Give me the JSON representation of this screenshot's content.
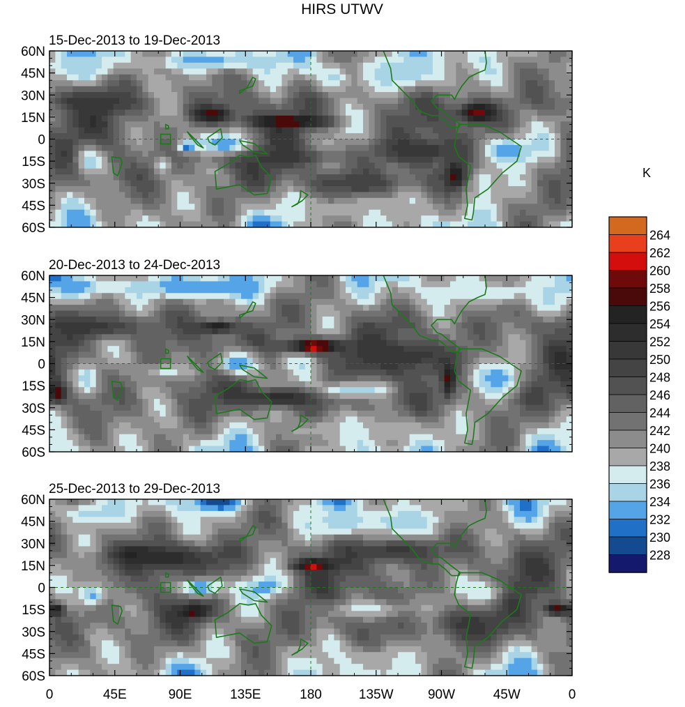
{
  "chart_data": {
    "type": "heatmap",
    "title": "HIRS UTWV",
    "units": "K",
    "grid": true,
    "x_ticks": [
      "0",
      "45E",
      "90E",
      "135E",
      "180",
      "135W",
      "90W",
      "45W",
      "0"
    ],
    "y_ticks": [
      "60N",
      "45N",
      "30N",
      "15N",
      "0",
      "15S",
      "30S",
      "45S",
      "60S"
    ],
    "xlim": [
      0,
      360
    ],
    "ylim": [
      -60,
      60
    ],
    "legend": {
      "position": "right",
      "levels": [
        "264",
        "262",
        "260",
        "258",
        "256",
        "254",
        "252",
        "250",
        "248",
        "246",
        "244",
        "242",
        "240",
        "238",
        "236",
        "234",
        "232",
        "230",
        "228"
      ],
      "colors": [
        "#d2691e",
        "#e8401c",
        "#d40d0d",
        "#6e0a0a",
        "#4a0a0a",
        "#232323",
        "#2d2d2d",
        "#383838",
        "#444444",
        "#525252",
        "#626262",
        "#727272",
        "#8c8c8c",
        "#a8a8a8",
        "#d4ecee",
        "#a8d4e6",
        "#55a4e8",
        "#2070c8",
        "#144a90",
        "#14196e"
      ]
    },
    "panels": [
      {
        "subtitle": "15-Dec-2013 to 19-Dec-2013",
        "features": [
          {
            "lon": 165,
            "lat": 12,
            "dlon": 28,
            "dlat": 4,
            "v": 259
          },
          {
            "lon": 112,
            "lat": 17,
            "dlon": 14,
            "dlat": 5,
            "v": 258
          },
          {
            "lon": 295,
            "lat": 18,
            "dlon": 13,
            "dlat": 7,
            "v": 259
          },
          {
            "lon": 280,
            "lat": -25,
            "dlon": 7,
            "dlat": 9,
            "v": 259
          },
          {
            "lon": 255,
            "lat": -8,
            "dlon": 30,
            "dlat": 8,
            "v": 252
          },
          {
            "lon": 150,
            "lat": -12,
            "dlon": 45,
            "dlat": 7,
            "v": 251
          },
          {
            "lon": 30,
            "lat": 25,
            "dlon": 30,
            "dlat": 8,
            "v": 252
          },
          {
            "lon": 210,
            "lat": -30,
            "dlon": 35,
            "dlat": 8,
            "v": 250
          },
          {
            "lon": 120,
            "lat": -3,
            "dlon": 20,
            "dlat": 8,
            "v": 232
          },
          {
            "lon": 315,
            "lat": -8,
            "dlon": 18,
            "dlat": 10,
            "v": 232
          },
          {
            "lon": 95,
            "lat": -5,
            "dlon": 6,
            "dlat": 4,
            "v": 231
          },
          {
            "lon": 28,
            "lat": -14,
            "dlon": 10,
            "dlat": 10,
            "v": 234
          },
          {
            "lon": 78,
            "lat": -18,
            "dlon": 5,
            "dlat": 6,
            "v": 236
          },
          {
            "lon": 245,
            "lat": 45,
            "dlon": 35,
            "dlat": 12,
            "v": 235
          },
          {
            "lon": 195,
            "lat": 42,
            "dlon": 12,
            "dlat": 10,
            "v": 235
          },
          {
            "lon": 300,
            "lat": -30,
            "dlon": 12,
            "dlat": 18,
            "v": 237
          },
          {
            "lon": 110,
            "lat": 53,
            "dlon": 40,
            "dlat": 6,
            "v": 233
          },
          {
            "lon": 20,
            "lat": 50,
            "dlon": 25,
            "dlat": 8,
            "v": 235
          },
          {
            "lon": 210,
            "lat": -48,
            "dlon": 50,
            "dlat": 8,
            "v": 238
          }
        ]
      },
      {
        "subtitle": "20-Dec-2013 to 24-Dec-2013",
        "features": [
          {
            "lon": 183,
            "lat": 12,
            "dlon": 22,
            "dlat": 5,
            "v": 260
          },
          {
            "lon": 183,
            "lat": 11,
            "dlon": 8,
            "dlat": 3,
            "v": 262
          },
          {
            "lon": 115,
            "lat": 25,
            "dlon": 12,
            "dlat": 4,
            "v": 257
          },
          {
            "lon": 275,
            "lat": -10,
            "dlon": 4,
            "dlat": 12,
            "v": 258
          },
          {
            "lon": 5,
            "lat": -20,
            "dlon": 6,
            "dlat": 6,
            "v": 258
          },
          {
            "lon": 160,
            "lat": -23,
            "dlon": 30,
            "dlat": 6,
            "v": 254
          },
          {
            "lon": 240,
            "lat": 5,
            "dlon": 40,
            "dlat": 10,
            "v": 252
          },
          {
            "lon": 30,
            "lat": 25,
            "dlon": 35,
            "dlat": 8,
            "v": 251
          },
          {
            "lon": 130,
            "lat": 0,
            "dlon": 18,
            "dlat": 10,
            "v": 232
          },
          {
            "lon": 210,
            "lat": -18,
            "dlon": 25,
            "dlat": 6,
            "v": 234
          },
          {
            "lon": 310,
            "lat": -10,
            "dlon": 15,
            "dlat": 10,
            "v": 233
          },
          {
            "lon": 100,
            "lat": 52,
            "dlon": 50,
            "dlat": 7,
            "v": 232
          },
          {
            "lon": 20,
            "lat": 52,
            "dlon": 25,
            "dlat": 8,
            "v": 233
          },
          {
            "lon": 300,
            "lat": 48,
            "dlon": 50,
            "dlat": 8,
            "v": 236
          },
          {
            "lon": 25,
            "lat": -10,
            "dlon": 8,
            "dlat": 10,
            "v": 235
          },
          {
            "lon": 210,
            "lat": -45,
            "dlon": 60,
            "dlat": 8,
            "v": 238
          },
          {
            "lon": 80,
            "lat": -5,
            "dlon": 15,
            "dlat": 5,
            "v": 237
          }
        ]
      },
      {
        "subtitle": "25-Dec-2013 to 29-Dec-2013",
        "features": [
          {
            "lon": 182,
            "lat": 15,
            "dlon": 15,
            "dlat": 4,
            "v": 259
          },
          {
            "lon": 182,
            "lat": 15,
            "dlon": 4,
            "dlat": 2,
            "v": 263
          },
          {
            "lon": 60,
            "lat": 23,
            "dlon": 12,
            "dlat": 5,
            "v": 258
          },
          {
            "lon": 100,
            "lat": -16,
            "dlon": 10,
            "dlat": 5,
            "v": 258
          },
          {
            "lon": 350,
            "lat": -15,
            "dlon": 9,
            "dlat": 4,
            "v": 258
          },
          {
            "lon": 5,
            "lat": -15,
            "dlon": 5,
            "dlat": 4,
            "v": 257
          },
          {
            "lon": 80,
            "lat": 20,
            "dlon": 40,
            "dlat": 8,
            "v": 253
          },
          {
            "lon": 240,
            "lat": 25,
            "dlon": 30,
            "dlat": 8,
            "v": 251
          },
          {
            "lon": 290,
            "lat": -25,
            "dlon": 25,
            "dlat": 12,
            "v": 251
          },
          {
            "lon": 105,
            "lat": 0,
            "dlon": 18,
            "dlat": 7,
            "v": 232
          },
          {
            "lon": 148,
            "lat": 0,
            "dlon": 12,
            "dlat": 6,
            "v": 232
          },
          {
            "lon": 30,
            "lat": -5,
            "dlon": 10,
            "dlat": 8,
            "v": 233
          },
          {
            "lon": 300,
            "lat": -3,
            "dlon": 14,
            "dlat": 10,
            "v": 236
          },
          {
            "lon": 115,
            "lat": 57,
            "dlon": 20,
            "dlat": 4,
            "v": 229
          },
          {
            "lon": 240,
            "lat": 45,
            "dlon": 35,
            "dlat": 10,
            "v": 235
          },
          {
            "lon": 200,
            "lat": 43,
            "dlon": 15,
            "dlat": 8,
            "v": 234
          },
          {
            "lon": 220,
            "lat": -15,
            "dlon": 30,
            "dlat": 7,
            "v": 237
          },
          {
            "lon": 215,
            "lat": -50,
            "dlon": 50,
            "dlat": 8,
            "v": 238
          },
          {
            "lon": 30,
            "lat": 50,
            "dlon": 25,
            "dlat": 8,
            "v": 235
          }
        ]
      }
    ]
  }
}
